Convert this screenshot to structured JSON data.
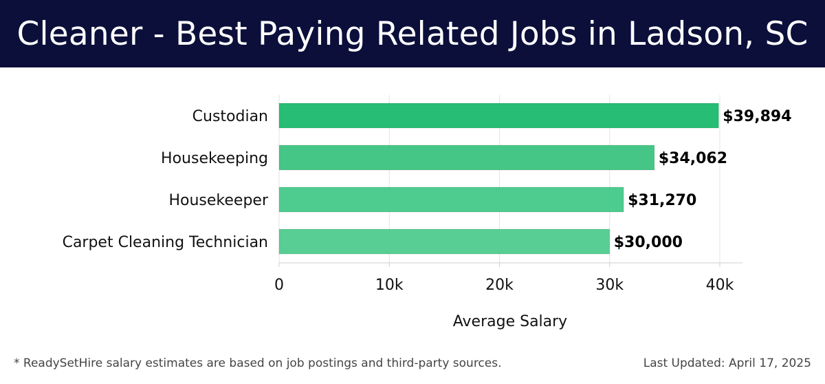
{
  "header": {
    "title": "Cleaner - Best Paying Related Jobs in Ladson, SC"
  },
  "chart_data": {
    "type": "bar",
    "orientation": "horizontal",
    "title": "Cleaner - Best Paying Related Jobs in Ladson, SC",
    "categories": [
      "Custodian",
      "Housekeeping",
      "Housekeeper",
      "Carpet Cleaning Technician"
    ],
    "values": [
      39894,
      34062,
      31270,
      30000
    ],
    "value_labels": [
      "$39,894",
      "$34,062",
      "$31,270",
      "$30,000"
    ],
    "xlabel": "Average Salary",
    "ylabel": "",
    "xlim": [
      0,
      42000
    ],
    "xticks": [
      0,
      10000,
      20000,
      30000,
      40000
    ],
    "xtick_labels": [
      "0",
      "10k",
      "20k",
      "30k",
      "40k"
    ],
    "grid": true,
    "bar_colors": [
      "#27bd74",
      "#45c686",
      "#4ecb8e",
      "#58cd94"
    ]
  },
  "footer": {
    "note": "* ReadySetHire salary estimates are based on job postings and third-party sources.",
    "updated": "Last Updated: April 17, 2025"
  }
}
